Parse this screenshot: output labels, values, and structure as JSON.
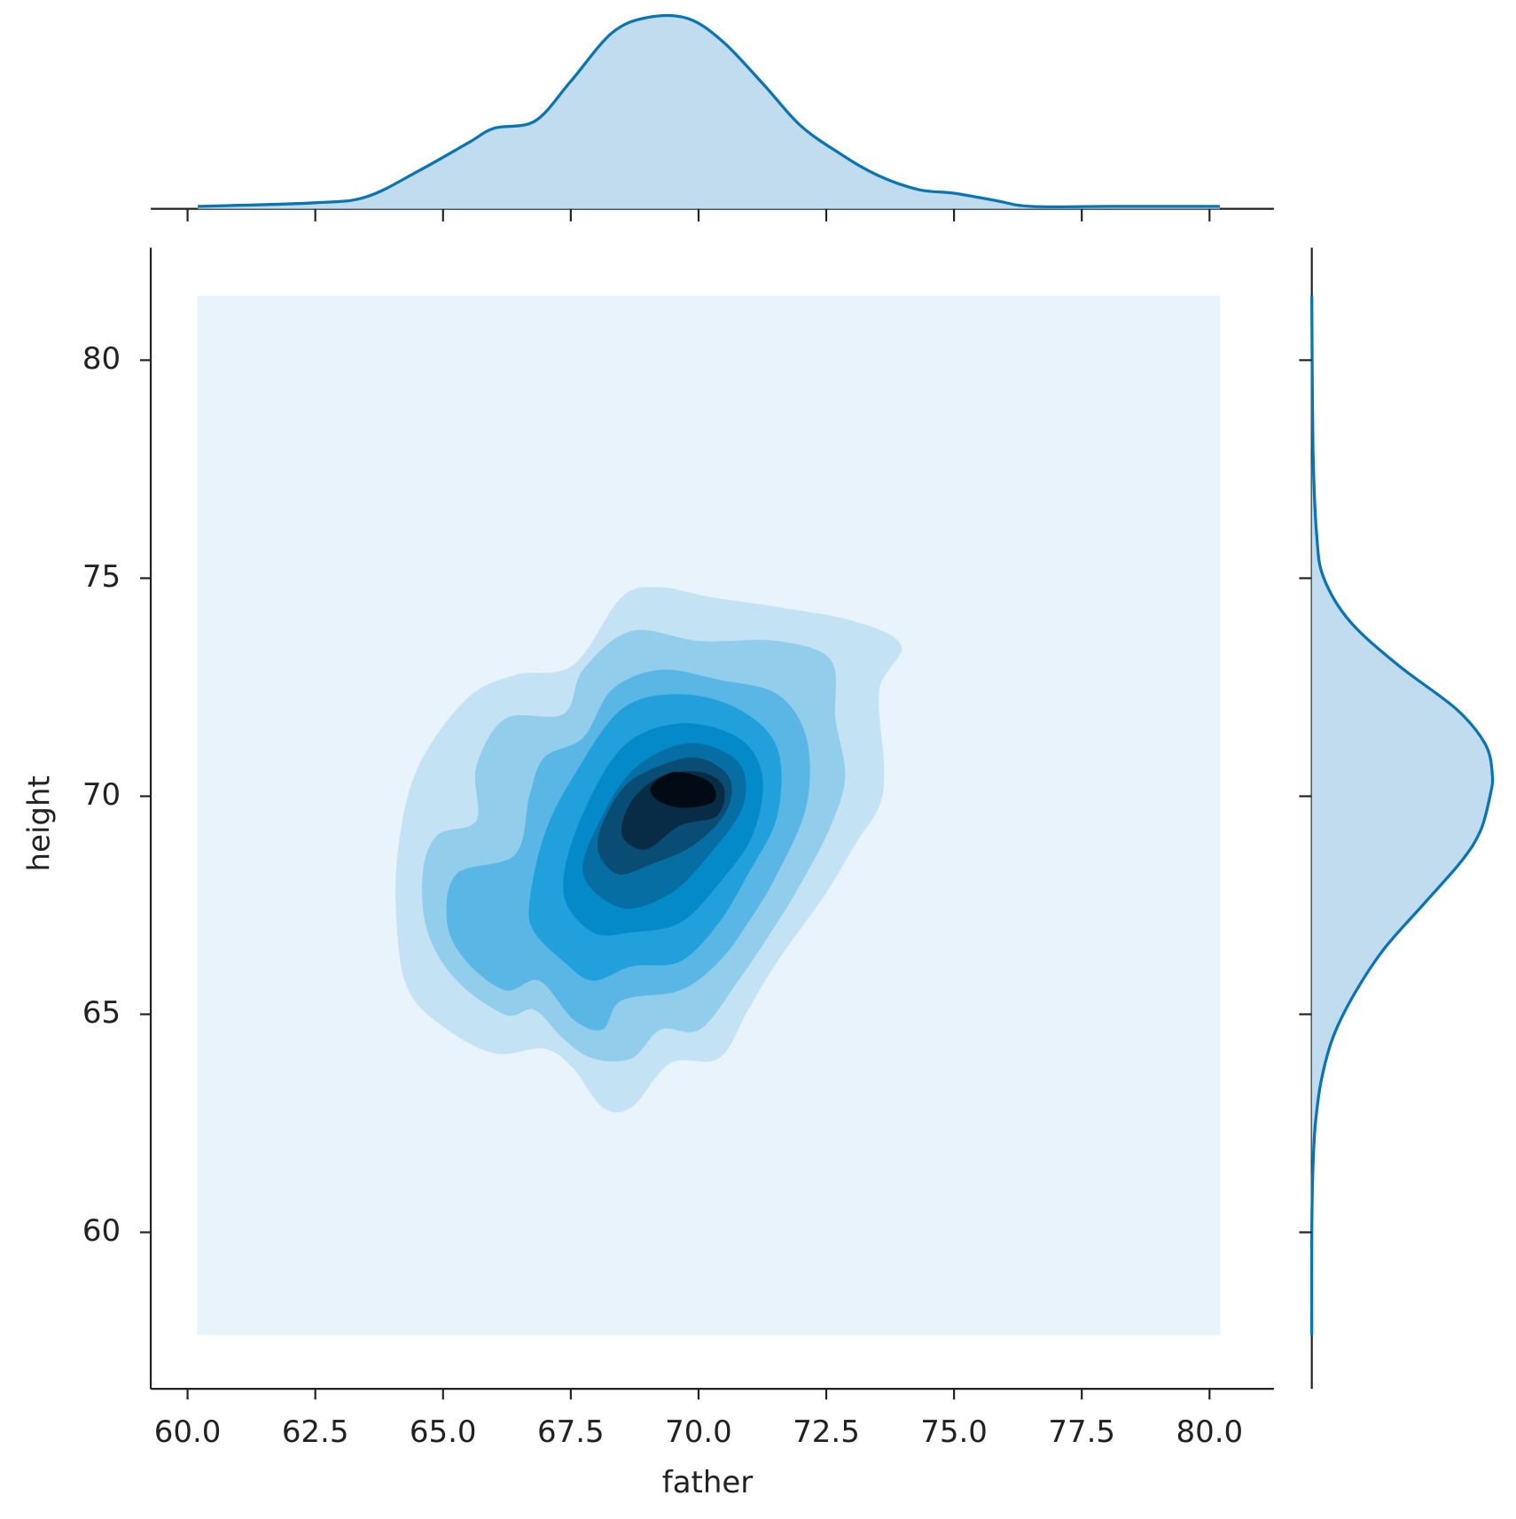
{
  "chart_data": {
    "type": "kde-joint",
    "x_label": "father",
    "y_label": "height",
    "xlim": [
      59.28,
      81.26
    ],
    "ylim": [
      56.41,
      82.58
    ],
    "xticks": [
      {
        "value": 60,
        "label": "60.0"
      },
      {
        "value": 62.5,
        "label": "62.5"
      },
      {
        "value": 65,
        "label": "65.0"
      },
      {
        "value": 67.5,
        "label": "67.5"
      },
      {
        "value": 70,
        "label": "70.0"
      },
      {
        "value": 72.5,
        "label": "72.5"
      },
      {
        "value": 75,
        "label": "75.0"
      },
      {
        "value": 77.5,
        "label": "77.5"
      },
      {
        "value": 80,
        "label": "80.0"
      }
    ],
    "yticks": [
      60,
      65,
      70,
      75,
      80
    ],
    "marginal_color": "#0b74b3",
    "marginal_fill": "#c0dcee",
    "top_marginal": {
      "x": [
        60.2,
        62.5,
        63.5,
        64.5,
        65.5,
        66.0,
        66.8,
        67.5,
        68.3,
        69.0,
        69.8,
        70.5,
        71.3,
        72.0,
        72.8,
        73.5,
        74.3,
        75.0,
        75.8,
        76.5,
        78.0,
        79.0,
        80.2
      ],
      "density": [
        0.002,
        0.005,
        0.01,
        0.031,
        0.055,
        0.067,
        0.073,
        0.106,
        0.146,
        0.159,
        0.158,
        0.138,
        0.102,
        0.069,
        0.045,
        0.028,
        0.016,
        0.013,
        0.007,
        0.002,
        0.002,
        0.002,
        0.002
      ]
    },
    "right_marginal": {
      "y": [
        81.47,
        78,
        76,
        75,
        74,
        73,
        72,
        71.2,
        70.5,
        70,
        69.2,
        68.5,
        67.5,
        66.5,
        65.5,
        64.5,
        63.5,
        62.5,
        61.5,
        60,
        57.64
      ],
      "density": [
        0,
        0.001,
        0.004,
        0.01,
        0.032,
        0.072,
        0.12,
        0.144,
        0.15,
        0.148,
        0.14,
        0.124,
        0.092,
        0.06,
        0.036,
        0.018,
        0.008,
        0.003,
        0.001,
        0,
        0
      ]
    },
    "contours": [
      {
        "color": "#e9f3fb",
        "father": [
          60.19,
          80.21,
          80.21,
          60.19
        ],
        "height": [
          57.64,
          57.64,
          81.47,
          81.47
        ]
      },
      {
        "color": "#c3e2f4",
        "father": [
          64.13,
          64.51,
          65.46,
          66.41,
          67.55,
          68.5,
          69.26,
          70.21,
          71.54,
          73.06,
          73.97,
          73.54,
          73.63,
          73.54,
          73.06,
          72.49,
          71.54,
          70.97,
          70.4,
          69.45,
          68.69,
          68.12,
          67.55,
          66.98,
          66.03,
          65.08,
          64.32,
          64.09
        ],
        "height": [
          68.89,
          70.67,
          72.23,
          72.78,
          73.01,
          74.57,
          74.79,
          74.57,
          74.34,
          74.01,
          73.45,
          72.45,
          70.67,
          69.78,
          68.89,
          67.77,
          66.21,
          65.1,
          63.99,
          63.88,
          62.87,
          62.87,
          63.76,
          64.21,
          64.1,
          64.65,
          65.55,
          67.1
        ]
      },
      {
        "color": "#92cdec",
        "father": [
          64.6,
          64.89,
          65.65,
          65.65,
          66.22,
          67.36,
          67.74,
          68.69,
          70.02,
          71.54,
          72.59,
          72.68,
          72.87,
          72.59,
          72.11,
          71.54,
          70.78,
          70.02,
          69.26,
          68.69,
          67.93,
          67.36,
          66.79,
          66.22,
          65.27,
          64.7
        ],
        "height": [
          68.22,
          69.11,
          69.44,
          70.67,
          71.78,
          71.89,
          72.9,
          73.79,
          73.56,
          73.56,
          73.12,
          71.78,
          70.45,
          69.33,
          68.22,
          67.1,
          65.77,
          64.65,
          64.65,
          63.99,
          63.99,
          64.43,
          65.1,
          64.99,
          65.77,
          66.88
        ]
      },
      {
        "color": "#5ab6e4",
        "father": [
          65.08,
          65.27,
          66.41,
          66.69,
          66.98,
          67.74,
          68.31,
          69.26,
          70.4,
          71.54,
          72.11,
          72.11,
          71.54,
          70.97,
          70.4,
          69.64,
          68.5,
          68.12,
          67.55,
          66.88,
          66.22,
          65.46
        ],
        "height": [
          67.1,
          68.22,
          68.66,
          70.0,
          70.89,
          71.34,
          72.45,
          72.9,
          72.67,
          72.34,
          71.34,
          69.78,
          68.22,
          67.1,
          66.21,
          65.55,
          65.32,
          64.65,
          64.88,
          65.77,
          65.55,
          66.21
        ]
      },
      {
        "color": "#22a0dc",
        "father": [
          66.69,
          66.98,
          67.55,
          68.5,
          69.64,
          70.78,
          71.54,
          71.54,
          70.97,
          70.4,
          69.64,
          68.69,
          67.93,
          67.36,
          66.79
        ],
        "height": [
          67.55,
          69.11,
          70.45,
          72.0,
          72.34,
          72.0,
          71.11,
          69.55,
          68.22,
          67.1,
          66.21,
          66.1,
          65.77,
          66.21,
          66.88
        ]
      },
      {
        "color": "#0489c9",
        "father": [
          67.36,
          67.64,
          68.5,
          69.64,
          70.78,
          71.25,
          71.06,
          70.4,
          69.64,
          68.69,
          67.93
        ],
        "height": [
          67.77,
          69.33,
          71.11,
          71.67,
          71.34,
          70.45,
          69.11,
          68.0,
          67.1,
          66.88,
          66.88
        ]
      },
      {
        "color": "#066ea3",
        "father": [
          67.74,
          68.12,
          68.78,
          69.83,
          70.78,
          70.87,
          70.21,
          69.45,
          68.5
        ],
        "height": [
          68.22,
          69.55,
          70.67,
          71.22,
          70.78,
          69.78,
          68.66,
          67.77,
          67.44
        ]
      },
      {
        "color": "#0a4d74",
        "father": [
          68.02,
          68.4,
          68.97,
          69.92,
          70.59,
          70.55,
          69.92,
          69.07,
          68.4
        ],
        "height": [
          68.89,
          70.0,
          70.56,
          70.89,
          70.45,
          69.67,
          68.89,
          68.44,
          68.22
        ]
      },
      {
        "color": "#082c45",
        "father": [
          68.5,
          68.69,
          69.26,
          70.02,
          70.49,
          70.36,
          69.64,
          68.97
        ],
        "height": [
          69.11,
          69.89,
          70.45,
          70.56,
          70.22,
          69.55,
          69.33,
          68.78
        ]
      },
      {
        "color": "#020b14",
        "father": [
          69.07,
          69.54,
          70.21,
          70.3,
          69.73,
          69.22
        ],
        "height": [
          70.22,
          70.56,
          70.33,
          69.89,
          69.73,
          69.89
        ]
      }
    ]
  }
}
